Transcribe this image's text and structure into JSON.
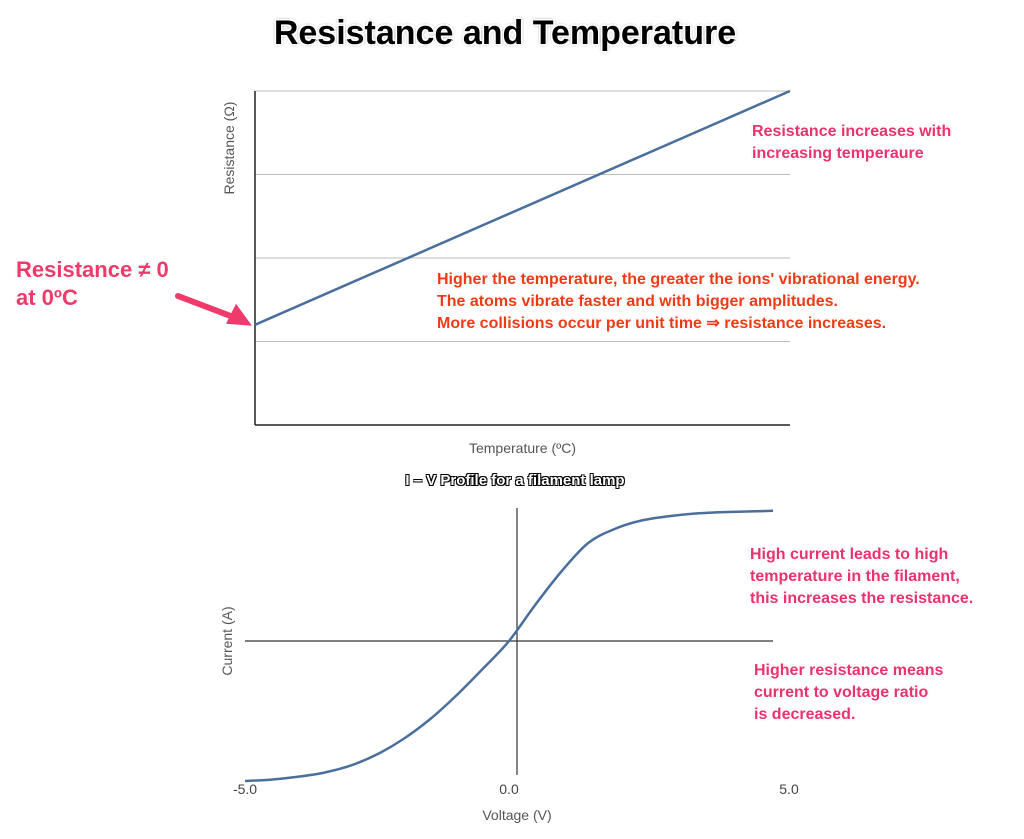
{
  "title": "Resistance and Temperature",
  "chart_data": [
    {
      "type": "line",
      "title": "",
      "xlabel": "Temperature (ºC)",
      "ylabel": "Resistance (Ω)",
      "x": [
        0,
        100
      ],
      "y": [
        0.3,
        1.0
      ],
      "xlim": [
        0,
        100
      ],
      "ylim": [
        0,
        1
      ],
      "grid": true,
      "annotations": {
        "increase": "Resistance increases with\nincreasing temperaure",
        "ions": "Higher the temperature, the greater the ions' vibrational energy.\nThe atoms vibrate faster and with bigger amplitudes.\nMore collisions occur per unit time ⇒ resistance increases.",
        "zero": "Resistance ≠ 0\nat 0ºC"
      }
    },
    {
      "type": "line",
      "title": "I – V Profile for a filament lamp",
      "xlabel": "Voltage (V)",
      "ylabel": "Current (A)",
      "xticks": [
        "-5.0",
        "0.0",
        "5.0"
      ],
      "xlim": [
        -5,
        5
      ],
      "ylim": [
        -1.1,
        1.0
      ],
      "x": [
        -5.0,
        -4.5,
        -4.0,
        -3.5,
        -3.0,
        -2.5,
        -2.0,
        -1.5,
        -1.0,
        -0.5,
        0.0,
        0.5,
        1.0,
        1.5,
        2.0,
        2.5,
        3.0,
        3.5,
        4.0,
        4.5,
        5.0
      ],
      "y": [
        -1.0,
        -0.99,
        -0.97,
        -0.94,
        -0.89,
        -0.81,
        -0.7,
        -0.56,
        -0.39,
        -0.2,
        0.0,
        0.26,
        0.5,
        0.7,
        0.8,
        0.86,
        0.89,
        0.91,
        0.92,
        0.925,
        0.93
      ],
      "grid": false,
      "annotations": {
        "high_current": "High current leads to high\ntemperature in the filament,\nthis increases the resistance.",
        "higher_resistance": "Higher resistance means\ncurrent to voltage ratio\nis decreased."
      }
    }
  ]
}
